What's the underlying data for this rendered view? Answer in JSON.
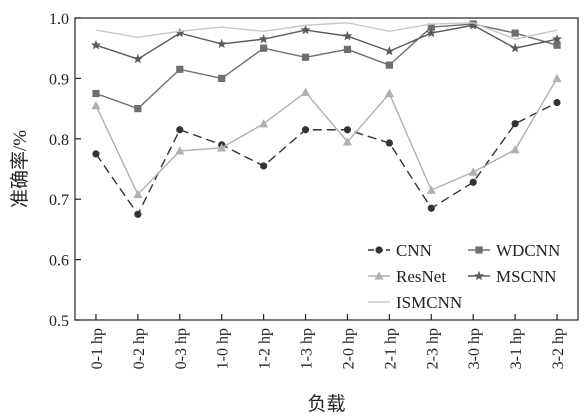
{
  "chart_data": {
    "type": "line",
    "title": "",
    "xlabel": "负载",
    "ylabel": "准确率/%",
    "ylim": [
      0.5,
      1.0
    ],
    "yticks": [
      0.5,
      0.6,
      0.7,
      0.8,
      0.9,
      1.0
    ],
    "ytick_labels": [
      "0.5",
      "0.6",
      "0.7",
      "0.8",
      "0.9",
      "1.0"
    ],
    "categories": [
      "0-1 hp",
      "0-2 hp",
      "0-3 hp",
      "1-0 hp",
      "1-2 hp",
      "1-3 hp",
      "2-0 hp",
      "2-1 hp",
      "2-3 hp",
      "3-0 hp",
      "3-1 hp",
      "3-2 hp"
    ],
    "grid": false,
    "legend_position": "bottom-right",
    "series": [
      {
        "name": "CNN",
        "color": "#333333",
        "marker": "circle",
        "dash": "dashed",
        "values": [
          0.775,
          0.675,
          0.815,
          0.79,
          0.755,
          0.815,
          0.815,
          0.793,
          0.685,
          0.728,
          0.825,
          0.86
        ]
      },
      {
        "name": "WDCNN",
        "color": "#6e6e6e",
        "marker": "square",
        "dash": "solid",
        "values": [
          0.875,
          0.85,
          0.915,
          0.9,
          0.95,
          0.935,
          0.948,
          0.922,
          0.985,
          0.99,
          0.975,
          0.955
        ]
      },
      {
        "name": "ResNet",
        "color": "#b0b0b0",
        "marker": "triangle",
        "dash": "solid",
        "values": [
          0.855,
          0.708,
          0.78,
          0.785,
          0.825,
          0.877,
          0.795,
          0.875,
          0.715,
          0.745,
          0.782,
          0.9
        ]
      },
      {
        "name": "MSCNN",
        "color": "#5a5a5a",
        "marker": "star",
        "dash": "solid",
        "values": [
          0.955,
          0.932,
          0.975,
          0.957,
          0.965,
          0.98,
          0.97,
          0.945,
          0.975,
          0.988,
          0.95,
          0.965
        ]
      },
      {
        "name": "ISMCNN",
        "color": "#c8c8c8",
        "marker": "none",
        "dash": "solid",
        "values": [
          0.98,
          0.968,
          0.978,
          0.985,
          0.978,
          0.988,
          0.992,
          0.978,
          0.99,
          0.992,
          0.965,
          0.98
        ]
      }
    ]
  }
}
